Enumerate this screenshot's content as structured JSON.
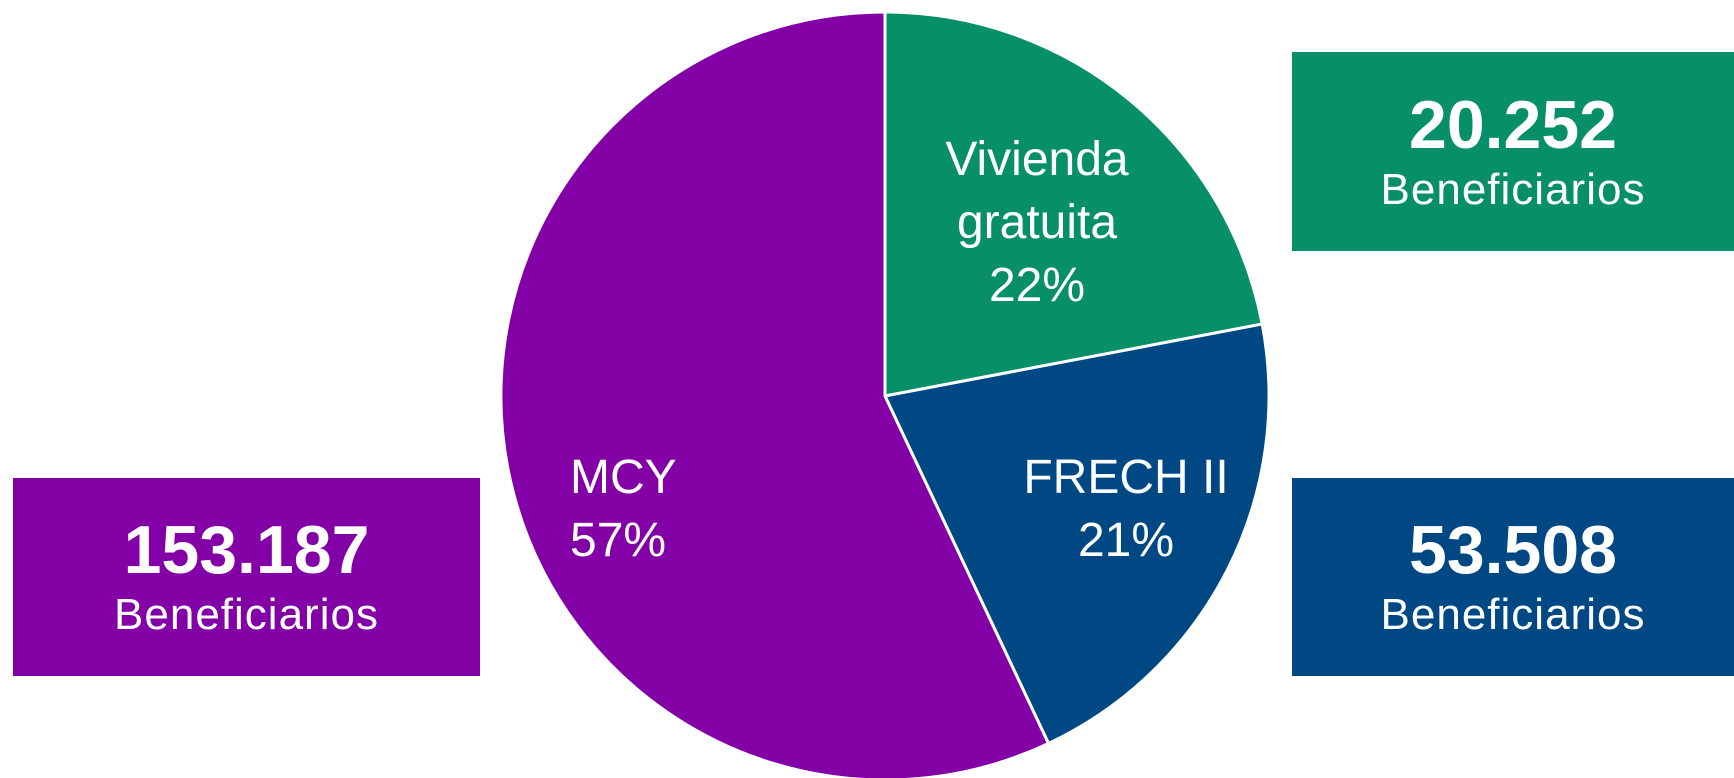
{
  "chart_data": {
    "type": "pie",
    "categories": [
      "Vivienda gratuita",
      "FRECH II",
      "MCY"
    ],
    "values": [
      22,
      21,
      57
    ],
    "value_labels": [
      "22%",
      "21%",
      "57%"
    ],
    "colors": [
      "#079068",
      "#004884",
      "#8200a6"
    ],
    "counts": [
      20252,
      53508,
      153187
    ],
    "count_labels": [
      "20.252",
      "53.508",
      "153.187"
    ],
    "count_caption": "Beneficiarios"
  }
}
